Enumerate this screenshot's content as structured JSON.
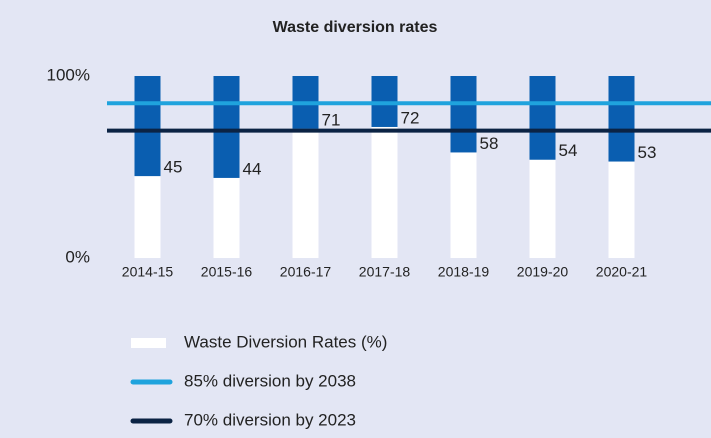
{
  "chart_data": {
    "type": "bar",
    "title": "Waste diversion rates",
    "categories": [
      "2014-15",
      "2015-16",
      "2016-17",
      "2017-18",
      "2018-19",
      "2019-20",
      "2020-21"
    ],
    "series": [
      {
        "name": "Waste Diversion Rates (%)",
        "color": "#ffffff",
        "values": [
          45,
          44,
          71,
          72,
          58,
          54,
          53
        ]
      },
      {
        "color": "#0a5eb0",
        "values": [
          55,
          56,
          29,
          28,
          42,
          46,
          47
        ]
      }
    ],
    "reference_lines": [
      {
        "name": "85% diversion by 2038",
        "color": "#1fa3dd",
        "value": 85
      },
      {
        "name": "70% diversion by 2023",
        "color": "#0b2344",
        "value": 70
      }
    ],
    "stacked": true,
    "ylim": [
      0,
      100
    ],
    "yticks": [
      {
        "value": 0,
        "label": "0%"
      },
      {
        "value": 100,
        "label": "100%"
      }
    ]
  }
}
